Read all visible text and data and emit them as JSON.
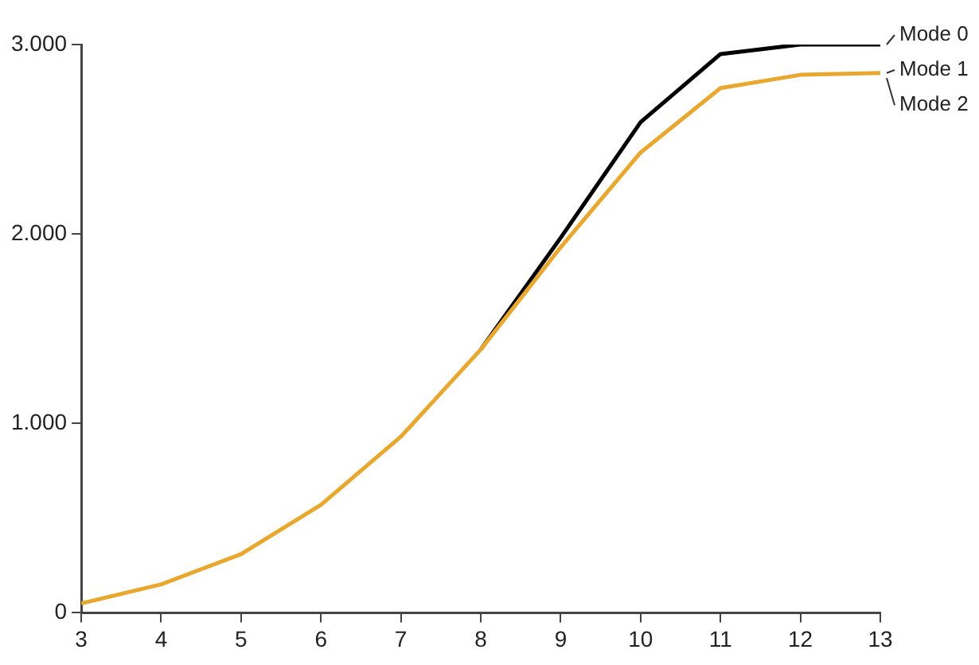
{
  "chart_data": {
    "type": "line",
    "x": [
      3,
      4,
      5,
      6,
      7,
      8,
      9,
      10,
      11,
      12,
      13
    ],
    "series": [
      {
        "name": "Mode 0",
        "color": "#000000",
        "values": [
          null,
          null,
          null,
          null,
          null,
          1390,
          1980,
          2590,
          2950,
          3000,
          3000
        ]
      },
      {
        "name": "Mode 1",
        "color": "#e8a830",
        "values": [
          50,
          150,
          310,
          570,
          930,
          1390,
          1930,
          2430,
          2770,
          2840,
          2850
        ]
      }
    ],
    "annotations": [
      {
        "text": "Mode 2",
        "x": 13,
        "y": 2850
      }
    ],
    "xlim": [
      3,
      13
    ],
    "xticks": [
      3,
      4,
      5,
      6,
      7,
      8,
      9,
      10,
      11,
      12,
      13
    ],
    "ylim": [
      0,
      3000
    ],
    "yticks": [
      0,
      {
        "value": 1000,
        "label": "1.000"
      },
      {
        "value": 2000,
        "label": "2.000"
      },
      {
        "value": 3000,
        "label": "3.000"
      }
    ],
    "grid": false,
    "legend": false,
    "marker": "none",
    "line_style": "solid"
  }
}
